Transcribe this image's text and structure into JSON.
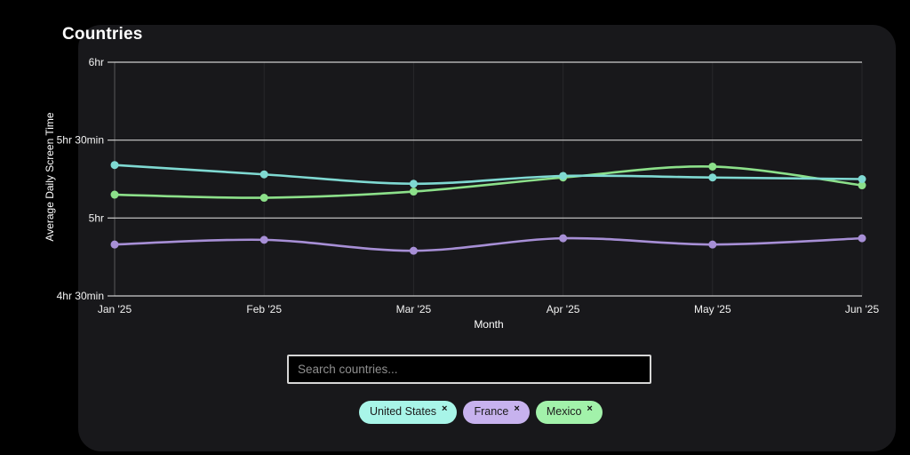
{
  "page": {
    "title": "Countries",
    "background": "#000000",
    "card_background": "#18181b"
  },
  "search": {
    "placeholder": "Search countries..."
  },
  "filters": {
    "chips": [
      {
        "label": "United States",
        "close": "×",
        "bg": "#a8f5e8"
      },
      {
        "label": "France",
        "close": "×",
        "bg": "#c7b2ee"
      },
      {
        "label": "Mexico",
        "close": "×",
        "bg": "#a2f2aa"
      }
    ]
  },
  "chart_data": {
    "type": "line",
    "title": "Countries",
    "x": [
      "Jan '25",
      "Feb '25",
      "Mar '25",
      "Apr '25",
      "May '25",
      "Jun '25"
    ],
    "xlabel": "Month",
    "ylabel": "Average Daily Screen Time",
    "ylim": [
      4.5,
      6.0
    ],
    "y_ticks": [
      {
        "label": "6hr",
        "value": 6.0
      },
      {
        "label": "5hr 30min",
        "value": 5.5
      },
      {
        "label": "5hr",
        "value": 5.0
      },
      {
        "label": "4hr 30min",
        "value": 4.5
      }
    ],
    "grid": {
      "horizontal": true,
      "vertical_faint": true
    },
    "legend_position": "none",
    "units": "hours",
    "series": [
      {
        "name": "United States",
        "color": "#7fd9d2",
        "values": [
          5.34,
          5.28,
          5.22,
          5.27,
          5.26,
          5.25
        ]
      },
      {
        "name": "France",
        "color": "#a78fd6",
        "values": [
          4.83,
          4.86,
          4.79,
          4.87,
          4.83,
          4.87
        ]
      },
      {
        "name": "Mexico",
        "color": "#8ce08a",
        "values": [
          5.15,
          5.13,
          5.17,
          5.26,
          5.33,
          5.21
        ]
      }
    ]
  }
}
